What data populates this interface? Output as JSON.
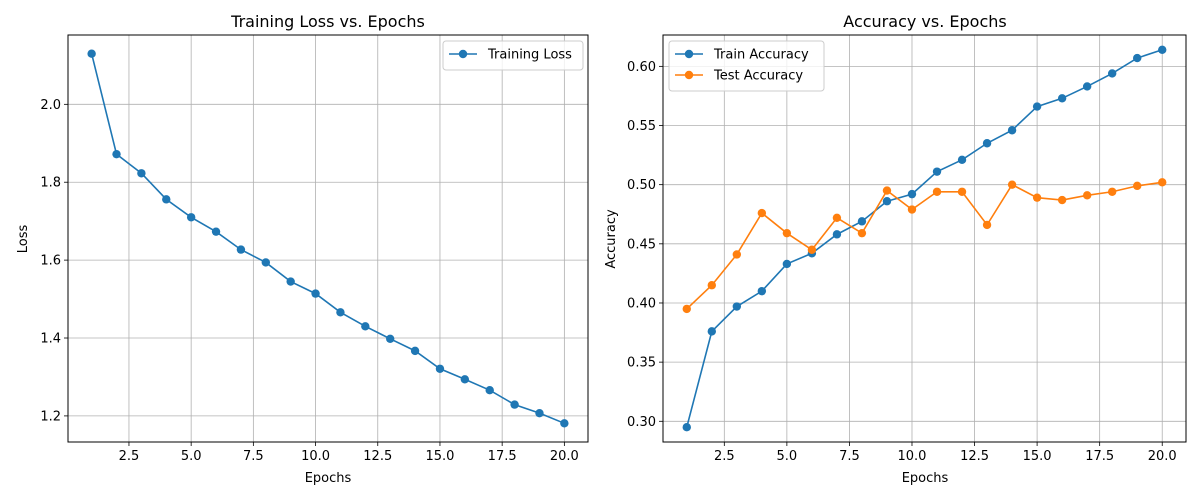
{
  "chart_data": [
    {
      "type": "line",
      "title": "Training Loss vs. Epochs",
      "xlabel": "Epochs",
      "ylabel": "Loss",
      "xlim": [
        0.05,
        20.95
      ],
      "ylim": [
        1.133,
        2.178
      ],
      "xticks": [
        2.5,
        5.0,
        7.5,
        10.0,
        12.5,
        15.0,
        17.5,
        20.0
      ],
      "xtick_labels": [
        "2.5",
        "5.0",
        "7.5",
        "10.0",
        "12.5",
        "15.0",
        "17.5",
        "20.0"
      ],
      "yticks": [
        1.2,
        1.4,
        1.6,
        1.8,
        2.0
      ],
      "ytick_labels": [
        "1.2",
        "1.4",
        "1.6",
        "1.8",
        "2.0"
      ],
      "grid": true,
      "legend_position": "top-right",
      "x": [
        1,
        2,
        3,
        4,
        5,
        6,
        7,
        8,
        9,
        10,
        11,
        12,
        13,
        14,
        15,
        16,
        17,
        18,
        19,
        20
      ],
      "series": [
        {
          "name": "Training Loss",
          "color": "#1f77b4",
          "values": [
            2.13,
            1.872,
            1.823,
            1.756,
            1.71,
            1.673,
            1.627,
            1.594,
            1.545,
            1.514,
            1.466,
            1.43,
            1.398,
            1.367,
            1.321,
            1.294,
            1.266,
            1.229,
            1.207,
            1.181
          ]
        }
      ]
    },
    {
      "type": "line",
      "title": "Accuracy vs. Epochs",
      "xlabel": "Epochs",
      "ylabel": "Accuracy",
      "xlim": [
        0.05,
        20.95
      ],
      "ylim": [
        0.2825,
        0.6265
      ],
      "xticks": [
        2.5,
        5.0,
        7.5,
        10.0,
        12.5,
        15.0,
        17.5,
        20.0
      ],
      "xtick_labels": [
        "2.5",
        "5.0",
        "7.5",
        "10.0",
        "12.5",
        "15.0",
        "17.5",
        "20.0"
      ],
      "yticks": [
        0.3,
        0.35,
        0.4,
        0.45,
        0.5,
        0.55,
        0.6
      ],
      "ytick_labels": [
        "0.30",
        "0.35",
        "0.40",
        "0.45",
        "0.50",
        "0.55",
        "0.60"
      ],
      "grid": true,
      "legend_position": "top-left",
      "x": [
        1,
        2,
        3,
        4,
        5,
        6,
        7,
        8,
        9,
        10,
        11,
        12,
        13,
        14,
        15,
        16,
        17,
        18,
        19,
        20
      ],
      "series": [
        {
          "name": "Train Accuracy",
          "color": "#1f77b4",
          "values": [
            0.295,
            0.376,
            0.397,
            0.41,
            0.433,
            0.442,
            0.458,
            0.469,
            0.486,
            0.492,
            0.511,
            0.521,
            0.535,
            0.546,
            0.566,
            0.573,
            0.583,
            0.594,
            0.607,
            0.614
          ]
        },
        {
          "name": "Test Accuracy",
          "color": "#ff7f0e",
          "values": [
            0.395,
            0.415,
            0.441,
            0.476,
            0.459,
            0.445,
            0.472,
            0.459,
            0.495,
            0.479,
            0.494,
            0.494,
            0.466,
            0.5,
            0.489,
            0.487,
            0.491,
            0.494,
            0.499,
            0.502
          ]
        }
      ]
    }
  ]
}
